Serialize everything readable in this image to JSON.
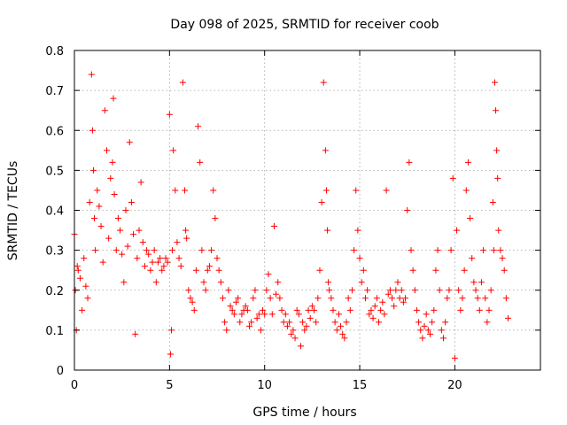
{
  "chart_data": {
    "type": "scatter",
    "title": "Day 098 of 2025, SRMTID for receiver coob",
    "xlabel": "GPS time / hours",
    "ylabel": "SRMTID / TECUs",
    "xlim": [
      0,
      24.5
    ],
    "ylim": [
      0,
      0.8
    ],
    "x_ticks": [
      0,
      5,
      10,
      15,
      20
    ],
    "x_tick_labels": [
      "0",
      "5",
      "10",
      "15",
      "20"
    ],
    "y_ticks": [
      0,
      0.1,
      0.2,
      0.3,
      0.4,
      0.5,
      0.6,
      0.7,
      0.8
    ],
    "y_tick_labels": [
      "0",
      "0.1",
      "0.2",
      "0.3",
      "0.4",
      "0.5",
      "0.6",
      "0.7",
      "0.8"
    ],
    "grid": true,
    "marker": "+",
    "marker_color": "#ff0000",
    "series": [
      {
        "name": "SRMTID",
        "x": [
          0.0,
          0.05,
          0.1,
          0.15,
          0.2,
          0.3,
          0.4,
          0.5,
          0.6,
          0.7,
          0.8,
          0.9,
          0.95,
          1.0,
          1.05,
          1.1,
          1.2,
          1.3,
          1.4,
          1.5,
          1.6,
          1.7,
          1.8,
          1.9,
          2.0,
          2.05,
          2.1,
          2.2,
          2.3,
          2.4,
          2.5,
          2.6,
          2.7,
          2.8,
          2.9,
          3.0,
          3.1,
          3.2,
          3.3,
          3.4,
          3.5,
          3.6,
          3.7,
          3.8,
          3.9,
          4.0,
          4.1,
          4.2,
          4.3,
          4.4,
          4.5,
          4.6,
          4.7,
          4.8,
          4.9,
          5.0,
          5.05,
          5.1,
          5.15,
          5.2,
          5.3,
          5.4,
          5.5,
          5.6,
          5.7,
          5.8,
          5.85,
          5.9,
          6.0,
          6.1,
          6.2,
          6.3,
          6.4,
          6.5,
          6.6,
          6.7,
          6.8,
          6.9,
          7.0,
          7.1,
          7.2,
          7.3,
          7.4,
          7.5,
          7.6,
          7.7,
          7.8,
          7.9,
          8.0,
          8.1,
          8.2,
          8.3,
          8.4,
          8.5,
          8.6,
          8.7,
          8.8,
          8.9,
          9.0,
          9.1,
          9.2,
          9.3,
          9.4,
          9.5,
          9.6,
          9.7,
          9.8,
          9.9,
          10.0,
          10.1,
          10.2,
          10.3,
          10.4,
          10.5,
          10.6,
          10.7,
          10.8,
          10.9,
          11.0,
          11.1,
          11.2,
          11.3,
          11.4,
          11.5,
          11.6,
          11.7,
          11.8,
          11.9,
          12.0,
          12.1,
          12.2,
          12.3,
          12.4,
          12.5,
          12.6,
          12.7,
          12.8,
          12.9,
          13.0,
          13.1,
          13.2,
          13.25,
          13.3,
          13.35,
          13.4,
          13.5,
          13.6,
          13.7,
          13.8,
          13.9,
          14.0,
          14.1,
          14.2,
          14.3,
          14.4,
          14.5,
          14.6,
          14.7,
          14.8,
          14.9,
          15.0,
          15.1,
          15.2,
          15.3,
          15.4,
          15.5,
          15.6,
          15.7,
          15.8,
          15.9,
          16.0,
          16.1,
          16.2,
          16.3,
          16.4,
          16.5,
          16.6,
          16.7,
          16.8,
          16.9,
          17.0,
          17.1,
          17.2,
          17.3,
          17.4,
          17.5,
          17.6,
          17.7,
          17.8,
          17.9,
          18.0,
          18.1,
          18.2,
          18.3,
          18.4,
          18.5,
          18.6,
          18.7,
          18.8,
          18.9,
          19.0,
          19.1,
          19.2,
          19.3,
          19.4,
          19.5,
          19.6,
          19.7,
          19.8,
          19.9,
          20.0,
          20.1,
          20.2,
          20.3,
          20.4,
          20.5,
          20.6,
          20.7,
          20.8,
          20.9,
          21.0,
          21.1,
          21.2,
          21.3,
          21.4,
          21.5,
          21.6,
          21.7,
          21.8,
          21.9,
          22.0,
          22.05,
          22.1,
          22.15,
          22.2,
          22.25,
          22.3,
          22.4,
          22.5,
          22.6,
          22.7,
          22.8
        ],
        "y": [
          0.34,
          0.2,
          0.1,
          0.26,
          0.25,
          0.23,
          0.15,
          0.28,
          0.21,
          0.18,
          0.42,
          0.74,
          0.6,
          0.5,
          0.38,
          0.3,
          0.45,
          0.41,
          0.36,
          0.27,
          0.65,
          0.55,
          0.33,
          0.48,
          0.52,
          0.68,
          0.44,
          0.3,
          0.38,
          0.35,
          0.29,
          0.22,
          0.4,
          0.31,
          0.57,
          0.42,
          0.34,
          0.09,
          0.28,
          0.35,
          0.47,
          0.32,
          0.26,
          0.3,
          0.29,
          0.25,
          0.27,
          0.3,
          0.22,
          0.27,
          0.28,
          0.25,
          0.26,
          0.28,
          0.27,
          0.64,
          0.04,
          0.1,
          0.3,
          0.55,
          0.45,
          0.32,
          0.28,
          0.26,
          0.72,
          0.45,
          0.35,
          0.33,
          0.2,
          0.18,
          0.17,
          0.15,
          0.25,
          0.61,
          0.52,
          0.3,
          0.22,
          0.2,
          0.25,
          0.26,
          0.3,
          0.45,
          0.38,
          0.28,
          0.25,
          0.22,
          0.18,
          0.12,
          0.1,
          0.2,
          0.16,
          0.15,
          0.14,
          0.17,
          0.18,
          0.12,
          0.14,
          0.15,
          0.16,
          0.15,
          0.11,
          0.12,
          0.18,
          0.2,
          0.13,
          0.14,
          0.1,
          0.15,
          0.14,
          0.2,
          0.24,
          0.18,
          0.14,
          0.36,
          0.19,
          0.22,
          0.18,
          0.15,
          0.12,
          0.14,
          0.11,
          0.12,
          0.09,
          0.1,
          0.08,
          0.15,
          0.14,
          0.06,
          0.12,
          0.1,
          0.11,
          0.15,
          0.13,
          0.16,
          0.15,
          0.12,
          0.18,
          0.25,
          0.42,
          0.72,
          0.55,
          0.45,
          0.35,
          0.22,
          0.2,
          0.18,
          0.15,
          0.12,
          0.1,
          0.14,
          0.11,
          0.09,
          0.08,
          0.12,
          0.18,
          0.15,
          0.2,
          0.3,
          0.45,
          0.35,
          0.28,
          0.22,
          0.25,
          0.18,
          0.2,
          0.14,
          0.15,
          0.13,
          0.16,
          0.18,
          0.12,
          0.15,
          0.17,
          0.14,
          0.45,
          0.19,
          0.2,
          0.18,
          0.16,
          0.2,
          0.22,
          0.18,
          0.2,
          0.17,
          0.18,
          0.4,
          0.52,
          0.3,
          0.25,
          0.2,
          0.15,
          0.12,
          0.1,
          0.08,
          0.11,
          0.14,
          0.1,
          0.09,
          0.12,
          0.15,
          0.25,
          0.3,
          0.2,
          0.1,
          0.08,
          0.12,
          0.18,
          0.2,
          0.3,
          0.48,
          0.03,
          0.35,
          0.2,
          0.15,
          0.18,
          0.25,
          0.45,
          0.52,
          0.38,
          0.28,
          0.22,
          0.2,
          0.18,
          0.15,
          0.22,
          0.3,
          0.18,
          0.12,
          0.15,
          0.2,
          0.42,
          0.3,
          0.72,
          0.65,
          0.55,
          0.48,
          0.35,
          0.3,
          0.28,
          0.25,
          0.18,
          0.13
        ]
      }
    ]
  }
}
